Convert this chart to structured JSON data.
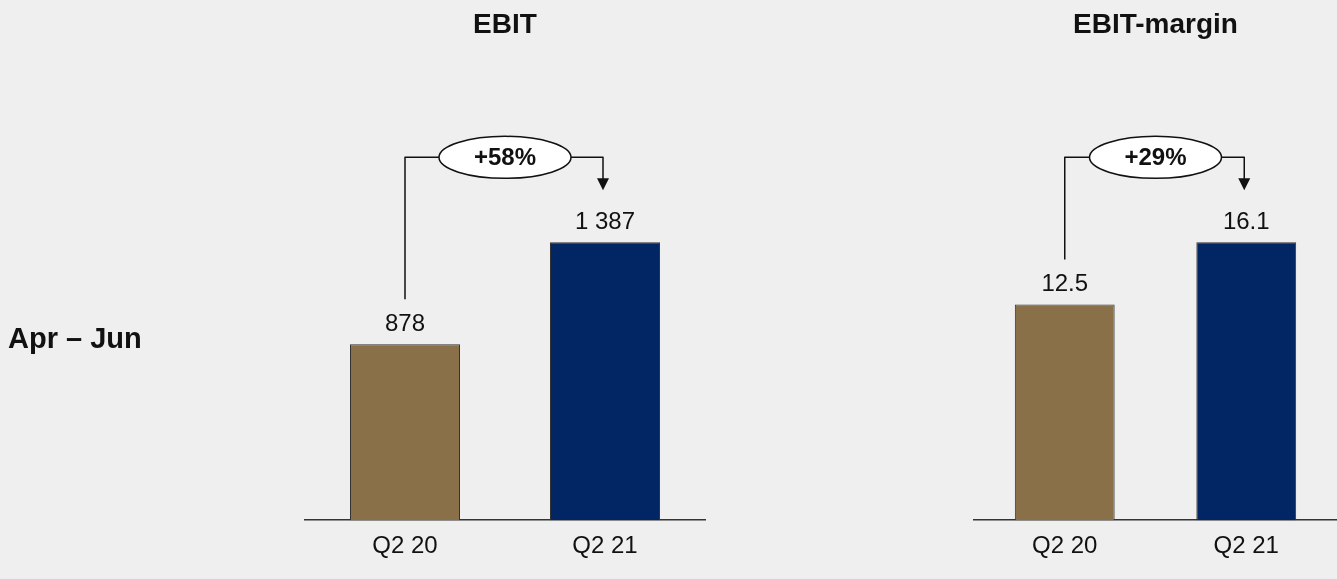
{
  "chart_data": [
    {
      "type": "bar",
      "title": "EBIT",
      "ylabel": "Apr – Jun",
      "categories": [
        "Q2 20",
        "Q2 21"
      ],
      "values": [
        878,
        1387
      ],
      "colors": [
        "#8a7049",
        "#022563"
      ],
      "value_labels": [
        "878",
        "1 387"
      ],
      "annotations": [
        "+58%"
      ]
    },
    {
      "type": "bar",
      "title": "EBIT-margin",
      "categories": [
        "Q2 20",
        "Q2 21"
      ],
      "values": [
        12.5,
        16.1
      ],
      "colors": [
        "#8a7049",
        "#022563"
      ],
      "data_labels": true,
      "annotations": [
        "+29%"
      ]
    }
  ]
}
